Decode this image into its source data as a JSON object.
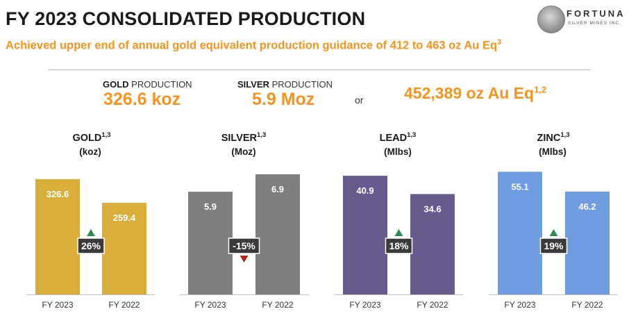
{
  "header": {
    "title": "FY 2023 CONSOLIDATED PRODUCTION",
    "subtitle": "Achieved upper end of annual gold equivalent production guidance of 412 to 463 oz Au Eq",
    "subtitle_sup": "3"
  },
  "logo": {
    "name": "FORTUNA",
    "tagline": "SILVER MINES INC."
  },
  "summary": {
    "gold_label_bold": "GOLD",
    "gold_label_rest": " PRODUCTION",
    "gold_value": "326.6 koz",
    "silver_label_bold": "SILVER",
    "silver_label_rest": " PRODUCTION",
    "silver_value": "5.9 Moz",
    "or_text": "or",
    "total_value": "452,389 oz Au Eq",
    "total_sup": "1,2"
  },
  "colors": {
    "gold": "#d9ae3b",
    "silver": "#7f7f7f",
    "lead": "#665a8f",
    "zinc": "#6f9be0",
    "accent": "#f7941d",
    "up": "#2e8b57",
    "down": "#b22222"
  },
  "chart_data": [
    {
      "type": "bar",
      "title": "GOLD",
      "title_sup": "1,3",
      "unit": "(koz)",
      "categories": [
        "FY 2023",
        "FY 2022"
      ],
      "values": [
        326.6,
        259.4
      ],
      "labels": [
        "326.6",
        "259.4"
      ],
      "change": "26%",
      "direction": "up",
      "ylim": [
        0,
        350
      ],
      "color_key": "gold"
    },
    {
      "type": "bar",
      "title": "SILVER",
      "title_sup": "1,3",
      "unit": "(Moz)",
      "categories": [
        "FY 2023",
        "FY 2022"
      ],
      "values": [
        5.9,
        6.9
      ],
      "labels": [
        "5.9",
        "6.9"
      ],
      "change": "-15%",
      "direction": "down",
      "ylim": [
        0,
        7.1
      ],
      "color_key": "silver"
    },
    {
      "type": "bar",
      "title": "LEAD",
      "title_sup": "1,3",
      "unit": "(Mlbs)",
      "categories": [
        "FY 2023",
        "FY 2022"
      ],
      "values": [
        40.9,
        34.6
      ],
      "labels": [
        "40.9",
        "34.6"
      ],
      "change": "18%",
      "direction": "up",
      "ylim": [
        0,
        42.6
      ],
      "color_key": "lead"
    },
    {
      "type": "bar",
      "title": "ZINC",
      "title_sup": "1,3",
      "unit": "(Mlbs)",
      "categories": [
        "FY 2023",
        "FY 2022"
      ],
      "values": [
        55.1,
        46.2
      ],
      "labels": [
        "55.1",
        "46.2"
      ],
      "change": "19%",
      "direction": "up",
      "ylim": [
        0,
        55.5
      ],
      "color_key": "zinc"
    }
  ]
}
